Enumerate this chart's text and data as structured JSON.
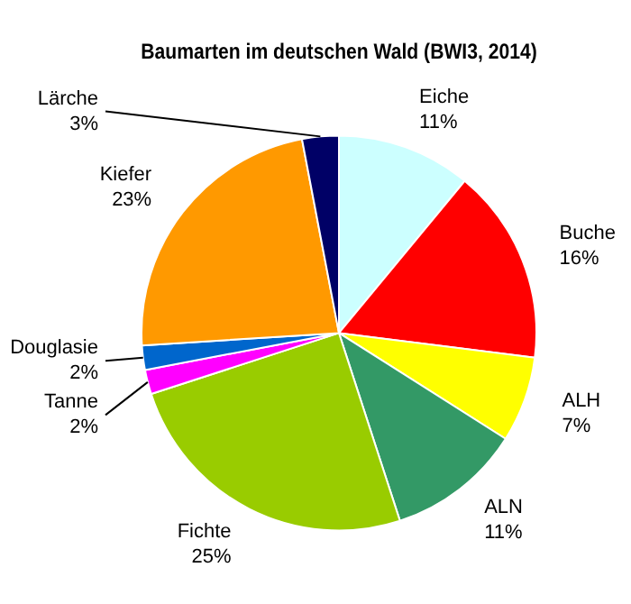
{
  "chart_data": {
    "type": "pie",
    "title": "Baumarten im deutschen Wald (BWI3, 2014)",
    "categories": [
      "Eiche",
      "Buche",
      "ALH",
      "ALN",
      "Fichte",
      "Tanne",
      "Douglasie",
      "Kiefer",
      "Lärche"
    ],
    "values": [
      11,
      16,
      7,
      11,
      25,
      2,
      2,
      23,
      3
    ],
    "value_labels": [
      "11%",
      "16%",
      "7%",
      "11%",
      "25%",
      "2%",
      "2%",
      "23%",
      "3%"
    ],
    "colors": [
      "#ccffff",
      "#ff0000",
      "#ffff00",
      "#339966",
      "#99cc00",
      "#ff00ff",
      "#0066cc",
      "#ff9900",
      "#000066"
    ],
    "legend": false
  }
}
